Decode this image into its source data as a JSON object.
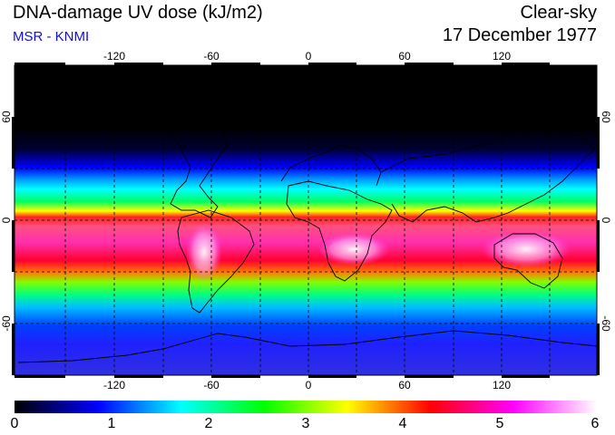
{
  "header": {
    "title": "DNA-damage UV dose (kJ/m2)",
    "subtitle": "MSR - KNMI",
    "mode": "Clear-sky",
    "date": "17 December 1977"
  },
  "map": {
    "lon_ticks": [
      "-120",
      "-60",
      "0",
      "60",
      "120"
    ],
    "lat_ticks_left": [
      "60",
      "0",
      "-60"
    ],
    "lat_ticks_right": [
      "60",
      "0",
      "-60"
    ],
    "lon_range": [
      -180,
      180
    ],
    "lat_range": [
      -90,
      90
    ],
    "grid": "dashed 30°"
  },
  "colorbar": {
    "labels": [
      "0",
      "1",
      "2",
      "3",
      "4",
      "5",
      "6"
    ],
    "min": 0,
    "max": 6,
    "colors": [
      "#000000",
      "#0000ff",
      "#00ffff",
      "#00ff00",
      "#ffff00",
      "#ff0000",
      "#ff00ff",
      "#ffffff"
    ]
  },
  "colors": {
    "subtitle": "#1010d0"
  }
}
